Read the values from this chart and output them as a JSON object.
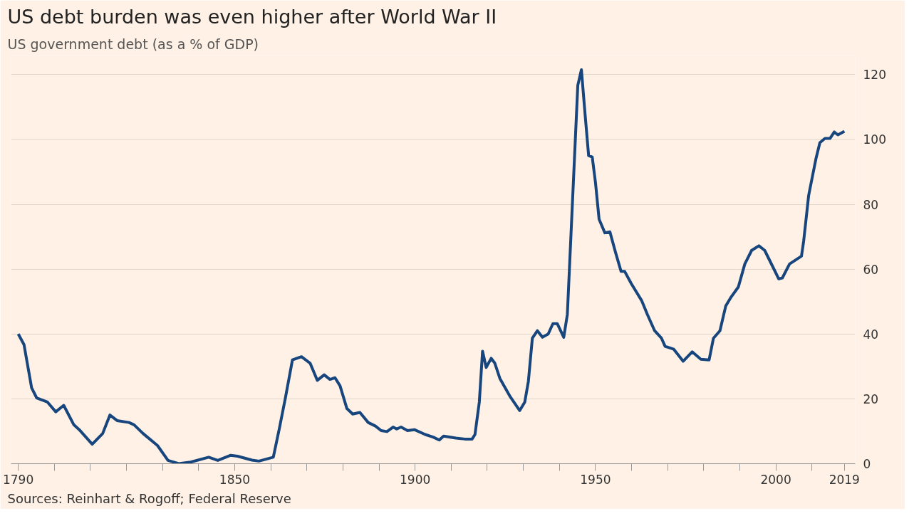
{
  "chart_data": {
    "type": "line",
    "title": "US debt burden was even higher after World War II",
    "subtitle": "US government debt (as a % of GDP)",
    "annotations": [
      "Sources: Reinhart & Rogoff; Federal Reserve"
    ],
    "x": [
      1790,
      1791.6,
      1793.7,
      1795.1,
      1798.1,
      1800.4,
      1802.6,
      1805.4,
      1806.9,
      1810.5,
      1813.4,
      1815.4,
      1817.4,
      1820.7,
      1822.1,
      1824.6,
      1828.6,
      1831.5,
      1834.5,
      1837.8,
      1842.8,
      1845.3,
      1848.9,
      1850.8,
      1854.8,
      1856.7,
      1860.7,
      1862.4,
      1864.0,
      1866.0,
      1868.5,
      1870.9,
      1872.9,
      1874.8,
      1876.4,
      1877.8,
      1879.2,
      1881.1,
      1882.7,
      1884.7,
      1887.0,
      1889.0,
      1890.6,
      1892.2,
      1893.9,
      1894.9,
      1896.1,
      1897.9,
      1899.8,
      1902.8,
      1905.0,
      1906.7,
      1907.9,
      1911.3,
      1913.8,
      1915.8,
      1916.6,
      1917.8,
      1918.7,
      1919.7,
      1921.1,
      1922.1,
      1923.5,
      1926.4,
      1929.0,
      1930.4,
      1931.4,
      1932.5,
      1933.9,
      1935.3,
      1936.9,
      1938.2,
      1939.4,
      1941.2,
      1942.2,
      1945.1,
      1946.1,
      1947.1,
      1948.1,
      1949.1,
      1950.0,
      1951.0,
      1952.6,
      1954.0,
      1955.6,
      1957.1,
      1958.1,
      1959.9,
      1962.8,
      1964.4,
      1966.4,
      1968.3,
      1969.3,
      1971.7,
      1974.3,
      1976.8,
      1979.2,
      1981.5,
      1982.7,
      1984.5,
      1986.1,
      1987.6,
      1989.6,
      1991.4,
      1993.3,
      1995.3,
      1996.9,
      1998.9,
      2000.8,
      2001.8,
      2003.8,
      2007.1,
      2007.7,
      2009.1,
      2011.1,
      2012.2,
      2013.6,
      2015.0,
      2016.2,
      2017.2,
      2019.0
    ],
    "series": [
      {
        "color": "#17457e",
        "values": [
          40,
          36.7,
          23.4,
          20.3,
          19,
          16,
          18,
          12,
          10.5,
          6,
          9.3,
          15,
          13.3,
          12.7,
          12,
          9.3,
          5.6,
          1,
          0,
          0.5,
          2,
          1,
          2.6,
          2.3,
          1.1,
          0.8,
          2,
          11,
          20,
          32,
          33,
          31,
          25.7,
          27.4,
          26,
          26.5,
          24,
          17,
          15.3,
          15.8,
          12.7,
          11.6,
          10.2,
          9.9,
          11.3,
          10.7,
          11.3,
          10.2,
          10.5,
          9,
          8.2,
          7.3,
          8.5,
          7.9,
          7.6,
          7.6,
          9,
          19,
          34.7,
          29.7,
          32.5,
          31,
          26.3,
          20.6,
          16.4,
          19,
          25.4,
          38.7,
          41,
          39,
          40,
          43.2,
          43.2,
          39,
          46,
          116.7,
          121.5,
          108,
          95,
          94.6,
          86.7,
          75.4,
          71.2,
          71.5,
          65,
          59.3,
          59.3,
          55.6,
          50.3,
          46,
          41,
          38.7,
          36.2,
          35.3,
          31.6,
          34.5,
          32.2,
          32,
          38.7,
          41,
          48.6,
          51.4,
          54.5,
          61.6,
          65.8,
          67.2,
          65.8,
          61.3,
          57,
          57.3,
          61.6,
          64,
          68.6,
          82.8,
          94,
          99,
          100.3,
          100.3,
          102.3,
          101.4,
          102.5
        ]
      }
    ],
    "xlim": [
      1788,
      2022
    ],
    "ylim": [
      0,
      126
    ],
    "xticks": [
      1790,
      {
        "value": 1800,
        "label": null
      },
      {
        "value": 1810,
        "label": null
      },
      {
        "value": 1820,
        "label": null
      },
      {
        "value": 1830,
        "label": null
      },
      {
        "value": 1840,
        "label": null
      },
      1850,
      {
        "value": 1860,
        "label": null
      },
      {
        "value": 1870,
        "label": null
      },
      {
        "value": 1880,
        "label": null
      },
      {
        "value": 1890,
        "label": null
      },
      1900,
      {
        "value": 1910,
        "label": null
      },
      {
        "value": 1920,
        "label": null
      },
      {
        "value": 1930,
        "label": null
      },
      {
        "value": 1940,
        "label": null
      },
      1950,
      {
        "value": 1960,
        "label": null
      },
      {
        "value": 1970,
        "label": null
      },
      {
        "value": 1980,
        "label": null
      },
      {
        "value": 1990,
        "label": null
      },
      2000,
      {
        "value": 2010,
        "label": null
      },
      2019
    ],
    "yticks": [
      0,
      20,
      40,
      60,
      80,
      100,
      120
    ],
    "grid": "y",
    "marker": "none",
    "line_style": "solid"
  }
}
